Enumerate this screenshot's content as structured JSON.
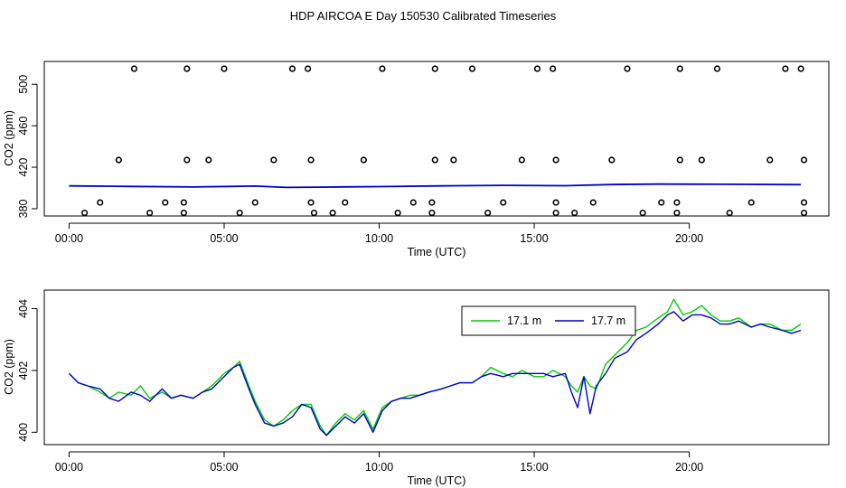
{
  "title": "HDP AIRCOA E  Day 150530  Calibrated Timeseries",
  "chart_data": [
    {
      "type": "scatter",
      "xlabel": "Time (UTC)",
      "ylabel": "CO2 (ppm)",
      "xlim": [
        -0.8,
        24.5
      ],
      "ylim": [
        373,
        522
      ],
      "x_ticks": [
        0,
        5,
        10,
        15,
        20
      ],
      "x_tick_labels": [
        "00:00",
        "05:00",
        "10:00",
        "15:00",
        "20:00"
      ],
      "y_ticks": [
        380,
        420,
        460,
        500
      ],
      "y_tick_labels": [
        "380",
        "420",
        "460",
        "500"
      ],
      "line_series": {
        "color": "#0000cc",
        "x": [
          0,
          2,
          4,
          6,
          7,
          8,
          10,
          12,
          14,
          16,
          17.5,
          19,
          21,
          23.6
        ],
        "y": [
          402,
          401.5,
          401,
          401.8,
          400.5,
          400.8,
          401.3,
          402,
          402.5,
          402.2,
          403.3,
          403.8,
          403.6,
          403.2
        ]
      },
      "points": [
        {
          "x": 2.1,
          "y": 515
        },
        {
          "x": 3.8,
          "y": 515
        },
        {
          "x": 5.0,
          "y": 515
        },
        {
          "x": 7.2,
          "y": 515
        },
        {
          "x": 7.7,
          "y": 515
        },
        {
          "x": 10.1,
          "y": 515
        },
        {
          "x": 11.8,
          "y": 515
        },
        {
          "x": 13.0,
          "y": 515
        },
        {
          "x": 15.1,
          "y": 515
        },
        {
          "x": 15.6,
          "y": 515
        },
        {
          "x": 18.0,
          "y": 515
        },
        {
          "x": 19.7,
          "y": 515
        },
        {
          "x": 20.9,
          "y": 515
        },
        {
          "x": 23.1,
          "y": 515
        },
        {
          "x": 23.6,
          "y": 515
        },
        {
          "x": 1.6,
          "y": 427
        },
        {
          "x": 3.8,
          "y": 427
        },
        {
          "x": 4.5,
          "y": 427
        },
        {
          "x": 6.6,
          "y": 427
        },
        {
          "x": 7.8,
          "y": 427
        },
        {
          "x": 9.5,
          "y": 427
        },
        {
          "x": 11.8,
          "y": 427
        },
        {
          "x": 12.4,
          "y": 427
        },
        {
          "x": 14.6,
          "y": 427
        },
        {
          "x": 15.7,
          "y": 427
        },
        {
          "x": 17.5,
          "y": 427
        },
        {
          "x": 19.7,
          "y": 427
        },
        {
          "x": 20.4,
          "y": 427
        },
        {
          "x": 22.6,
          "y": 427
        },
        {
          "x": 23.7,
          "y": 427
        },
        {
          "x": 1.0,
          "y": 386
        },
        {
          "x": 3.1,
          "y": 386
        },
        {
          "x": 3.7,
          "y": 386
        },
        {
          "x": 6.0,
          "y": 386
        },
        {
          "x": 7.8,
          "y": 386
        },
        {
          "x": 8.9,
          "y": 386
        },
        {
          "x": 11.1,
          "y": 386
        },
        {
          "x": 11.7,
          "y": 386
        },
        {
          "x": 14.0,
          "y": 386
        },
        {
          "x": 15.7,
          "y": 386
        },
        {
          "x": 16.9,
          "y": 386
        },
        {
          "x": 19.1,
          "y": 386
        },
        {
          "x": 19.6,
          "y": 386
        },
        {
          "x": 22.0,
          "y": 386
        },
        {
          "x": 23.7,
          "y": 386
        },
        {
          "x": 0.5,
          "y": 376
        },
        {
          "x": 2.6,
          "y": 376
        },
        {
          "x": 3.7,
          "y": 376
        },
        {
          "x": 5.5,
          "y": 376
        },
        {
          "x": 7.9,
          "y": 376
        },
        {
          "x": 8.5,
          "y": 376
        },
        {
          "x": 10.6,
          "y": 376
        },
        {
          "x": 11.7,
          "y": 376
        },
        {
          "x": 13.5,
          "y": 376
        },
        {
          "x": 15.7,
          "y": 376
        },
        {
          "x": 16.3,
          "y": 376
        },
        {
          "x": 18.5,
          "y": 376
        },
        {
          "x": 19.6,
          "y": 376
        },
        {
          "x": 21.3,
          "y": 376
        },
        {
          "x": 23.7,
          "y": 376
        }
      ]
    },
    {
      "type": "line",
      "xlabel": "Time (UTC)",
      "ylabel": "CO2 (ppm)",
      "xlim": [
        -0.8,
        24.5
      ],
      "ylim": [
        399.6,
        404.6
      ],
      "x_ticks": [
        0,
        5,
        10,
        15,
        20
      ],
      "x_tick_labels": [
        "00:00",
        "05:00",
        "10:00",
        "15:00",
        "20:00"
      ],
      "y_ticks": [
        400,
        402,
        404
      ],
      "y_tick_labels": [
        "400",
        "402",
        "404"
      ],
      "legend": {
        "placement": "top-right"
      },
      "series": [
        {
          "name": "17.1 m",
          "color": "#00cc00",
          "x": [
            0,
            0.3,
            0.6,
            1.0,
            1.3,
            1.6,
            2.0,
            2.3,
            2.6,
            3.0,
            3.3,
            3.6,
            4.0,
            4.3,
            4.6,
            5.0,
            5.3,
            5.5,
            5.8,
            6.0,
            6.3,
            6.6,
            6.9,
            7.2,
            7.5,
            7.8,
            8.1,
            8.3,
            8.6,
            8.9,
            9.2,
            9.5,
            9.8,
            10.1,
            10.4,
            10.7,
            11.0,
            11.3,
            11.6,
            12.0,
            12.3,
            12.6,
            13.0,
            13.3,
            13.6,
            14.0,
            14.3,
            14.6,
            15.0,
            15.3,
            15.6,
            16.0,
            16.2,
            16.4,
            16.6,
            16.8,
            17.0,
            17.3,
            17.6,
            18.0,
            18.3,
            18.6,
            19.0,
            19.3,
            19.5,
            19.8,
            20.1,
            20.4,
            20.7,
            21.0,
            21.3,
            21.6,
            22.0,
            22.3,
            22.6,
            23.0,
            23.3,
            23.6
          ],
          "y": [
            401.9,
            401.6,
            401.5,
            401.3,
            401.1,
            401.3,
            401.2,
            401.5,
            401.1,
            401.3,
            401.1,
            401.2,
            401.1,
            401.3,
            401.5,
            401.9,
            402.1,
            402.3,
            401.5,
            401.0,
            400.4,
            400.2,
            400.4,
            400.7,
            400.9,
            400.9,
            400.2,
            399.9,
            400.3,
            400.6,
            400.4,
            400.7,
            400.1,
            400.8,
            401.0,
            401.1,
            401.2,
            401.2,
            401.3,
            401.4,
            401.5,
            401.6,
            401.6,
            401.8,
            402.1,
            401.9,
            401.8,
            402.0,
            401.8,
            401.8,
            402.0,
            401.8,
            401.5,
            401.3,
            401.8,
            401.5,
            401.4,
            402.2,
            402.5,
            402.9,
            403.3,
            403.4,
            403.7,
            403.9,
            404.3,
            403.8,
            403.9,
            404.1,
            403.8,
            403.6,
            403.6,
            403.7,
            403.4,
            403.5,
            403.5,
            403.3,
            403.3,
            403.5
          ]
        },
        {
          "name": "17.7 m",
          "color": "#0000cc",
          "x": [
            0,
            0.3,
            0.6,
            1.0,
            1.3,
            1.6,
            2.0,
            2.3,
            2.6,
            3.0,
            3.3,
            3.6,
            4.0,
            4.3,
            4.6,
            5.0,
            5.3,
            5.5,
            5.8,
            6.0,
            6.3,
            6.6,
            6.9,
            7.2,
            7.5,
            7.8,
            8.1,
            8.3,
            8.6,
            8.9,
            9.2,
            9.5,
            9.8,
            10.1,
            10.4,
            10.7,
            11.0,
            11.3,
            11.6,
            12.0,
            12.3,
            12.6,
            13.0,
            13.3,
            13.6,
            14.0,
            14.3,
            14.6,
            15.0,
            15.3,
            15.6,
            16.0,
            16.2,
            16.4,
            16.6,
            16.8,
            17.0,
            17.3,
            17.6,
            18.0,
            18.3,
            18.6,
            19.0,
            19.3,
            19.5,
            19.8,
            20.1,
            20.4,
            20.7,
            21.0,
            21.3,
            21.6,
            22.0,
            22.3,
            22.6,
            23.0,
            23.3,
            23.6
          ],
          "y": [
            401.9,
            401.6,
            401.5,
            401.4,
            401.1,
            401.0,
            401.3,
            401.2,
            401.0,
            401.4,
            401.1,
            401.2,
            401.1,
            401.3,
            401.4,
            401.8,
            402.1,
            402.2,
            401.4,
            400.9,
            400.3,
            400.2,
            400.3,
            400.5,
            400.9,
            400.8,
            400.1,
            399.9,
            400.2,
            400.5,
            400.3,
            400.6,
            400.0,
            400.7,
            401.0,
            401.1,
            401.1,
            401.2,
            401.3,
            401.4,
            401.5,
            401.6,
            401.6,
            401.8,
            401.9,
            401.8,
            401.9,
            401.9,
            401.9,
            401.9,
            401.8,
            401.9,
            401.3,
            400.8,
            401.8,
            400.6,
            401.5,
            401.9,
            402.4,
            402.6,
            403.0,
            403.2,
            403.5,
            403.8,
            403.9,
            403.6,
            403.8,
            403.8,
            403.7,
            403.5,
            403.5,
            403.6,
            403.4,
            403.5,
            403.4,
            403.3,
            403.2,
            403.3
          ]
        }
      ]
    }
  ]
}
